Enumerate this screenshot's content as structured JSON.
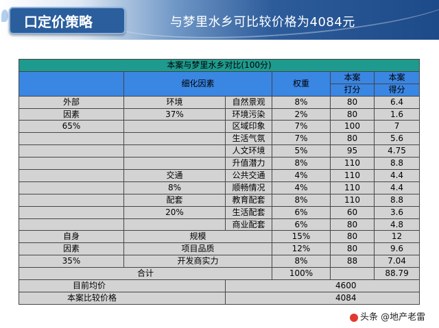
{
  "header": {
    "badge": "口定价策略",
    "headline": "与梦里水乡可比较价格为4084元"
  },
  "table": {
    "title": "本案与梦里水乡对比(100分)",
    "col_detail": "细化因素",
    "col_weight": "权重",
    "col_score_top": "本案",
    "col_score_bottom": "打分",
    "col_points_top": "本案",
    "col_points_bottom": "得分",
    "rows": [
      {
        "c1": "外部",
        "c2": "环境",
        "c3": "自然景观",
        "w": "8%",
        "s": "80",
        "p": "6.4"
      },
      {
        "c1": "因素",
        "c2": "37%",
        "c3": "环境污染",
        "w": "2%",
        "s": "80",
        "p": "1.6"
      },
      {
        "c1": "65%",
        "c2": "",
        "c3": "区域印象",
        "w": "7%",
        "s": "100",
        "p": "7"
      },
      {
        "c1": "",
        "c2": "",
        "c3": "生活气氛",
        "w": "7%",
        "s": "80",
        "p": "5.6"
      },
      {
        "c1": "",
        "c2": "",
        "c3": "人文环境",
        "w": "5%",
        "s": "95",
        "p": "4.75"
      },
      {
        "c1": "",
        "c2": "",
        "c3": "升值潜力",
        "w": "8%",
        "s": "110",
        "p": "8.8"
      },
      {
        "c1": "",
        "c2": "交通",
        "c3": "公共交通",
        "w": "4%",
        "s": "110",
        "p": "4.4"
      },
      {
        "c1": "",
        "c2": "8%",
        "c3": "顺畅情况",
        "w": "4%",
        "s": "110",
        "p": "4.4"
      },
      {
        "c1": "",
        "c2": "配套",
        "c3": "教育配套",
        "w": "8%",
        "s": "110",
        "p": "8.8"
      },
      {
        "c1": "",
        "c2": "20%",
        "c3": "生活配套",
        "w": "6%",
        "s": "60",
        "p": "3.6"
      },
      {
        "c1": "",
        "c2": "",
        "c3": "商业配套",
        "w": "6%",
        "s": "80",
        "p": "4.8"
      }
    ],
    "rows2": [
      {
        "c1": "自身",
        "c23": "规模",
        "w": "15%",
        "s": "80",
        "p": "12"
      },
      {
        "c1": "因素",
        "c23": "项目品质",
        "w": "12%",
        "s": "80",
        "p": "9.6"
      },
      {
        "c1": "35%",
        "c23": "开发商实力",
        "w": "8%",
        "s": "88",
        "p": "7.04"
      }
    ],
    "total_label": "合计",
    "total_weight": "100%",
    "total_points": "88.79",
    "avg_label": "目前均价",
    "avg_value": "4600",
    "cmp_label": "本案比较价格",
    "cmp_value": "4084"
  },
  "watermark": "头条 @地产老雷",
  "colors": {
    "title_bar": "#1f9a8e",
    "header_bar": "#3a86e3",
    "body": "#d3d3d3"
  }
}
